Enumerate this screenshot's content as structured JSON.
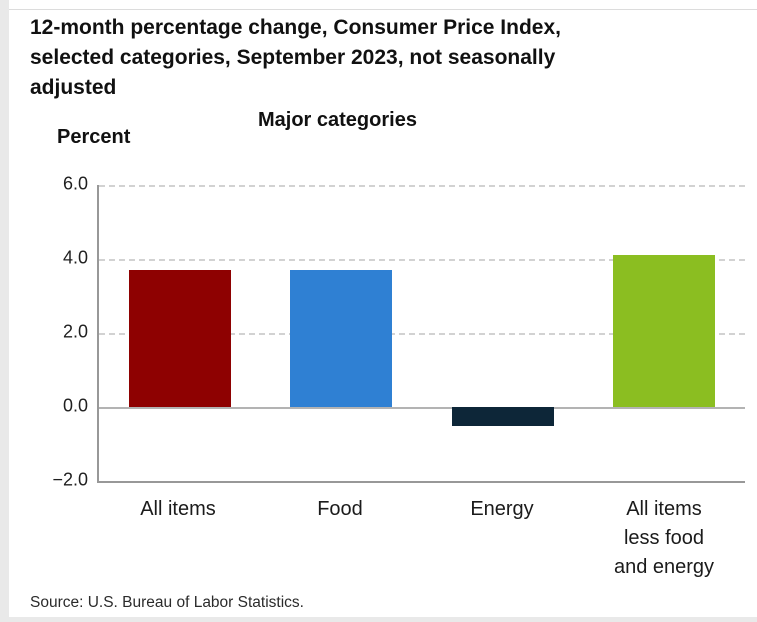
{
  "page": {
    "title": "12-month percentage change, Consumer Price Index,\nselected categories, September 2023, not seasonally\nadjusted",
    "source": "Source: U.S. Bureau of Labor Statistics."
  },
  "chart_data": {
    "type": "bar",
    "title": "Major categories",
    "ylabel": "Percent",
    "categories": [
      "All items",
      "Food",
      "Energy",
      "All items\nless food\nand energy"
    ],
    "values": [
      3.7,
      3.7,
      -0.5,
      4.1
    ],
    "bar_colors": [
      "#8E0101",
      "#2F80D3",
      "#0D2638",
      "#8BBE21"
    ],
    "ylim": [
      -2.0,
      6.0
    ],
    "yticks": [
      {
        "value": 6.0,
        "label": "6.0"
      },
      {
        "value": 4.0,
        "label": "4.0"
      },
      {
        "value": 2.0,
        "label": "2.0"
      },
      {
        "value": 0.0,
        "label": "0.0"
      },
      {
        "value": -2.0,
        "label": "−2.0"
      }
    ],
    "grid": "horizontal-dashed",
    "legend": "none"
  }
}
